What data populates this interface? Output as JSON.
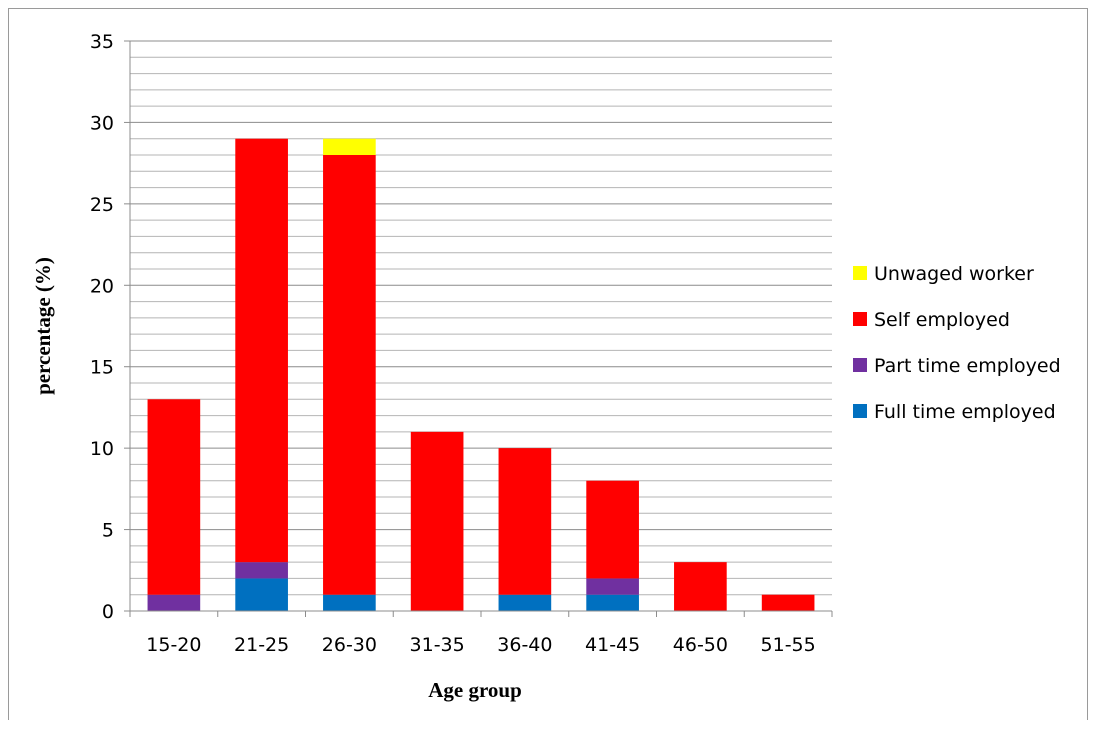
{
  "chart_data": {
    "type": "bar",
    "stacked": true,
    "xlabel": "Age group",
    "ylabel": "percentage (%)",
    "ylim": [
      0,
      35
    ],
    "yticks": [
      0,
      5,
      10,
      15,
      20,
      25,
      30,
      35
    ],
    "minor_gridline_step": 1,
    "grid": true,
    "legend_position": "right",
    "categories": [
      "15-20",
      "21-25",
      "26-30",
      "31-35",
      "36-40",
      "41-45",
      "46-50",
      "51-55"
    ],
    "series": [
      {
        "name": "Full time employed",
        "color": "#0070c0",
        "values": [
          0,
          2,
          1,
          0,
          1,
          1,
          0,
          0
        ]
      },
      {
        "name": "Part time employed",
        "color": "#7030a0",
        "values": [
          1,
          1,
          0,
          0,
          0,
          1,
          0,
          0
        ]
      },
      {
        "name": "Self employed",
        "color": "#ff0000",
        "values": [
          12,
          26,
          27,
          11,
          9,
          6,
          3,
          1
        ]
      },
      {
        "name": "Unwaged worker",
        "color": "#ffff00",
        "values": [
          0,
          0,
          1,
          0,
          0,
          0,
          0,
          0
        ]
      }
    ]
  }
}
